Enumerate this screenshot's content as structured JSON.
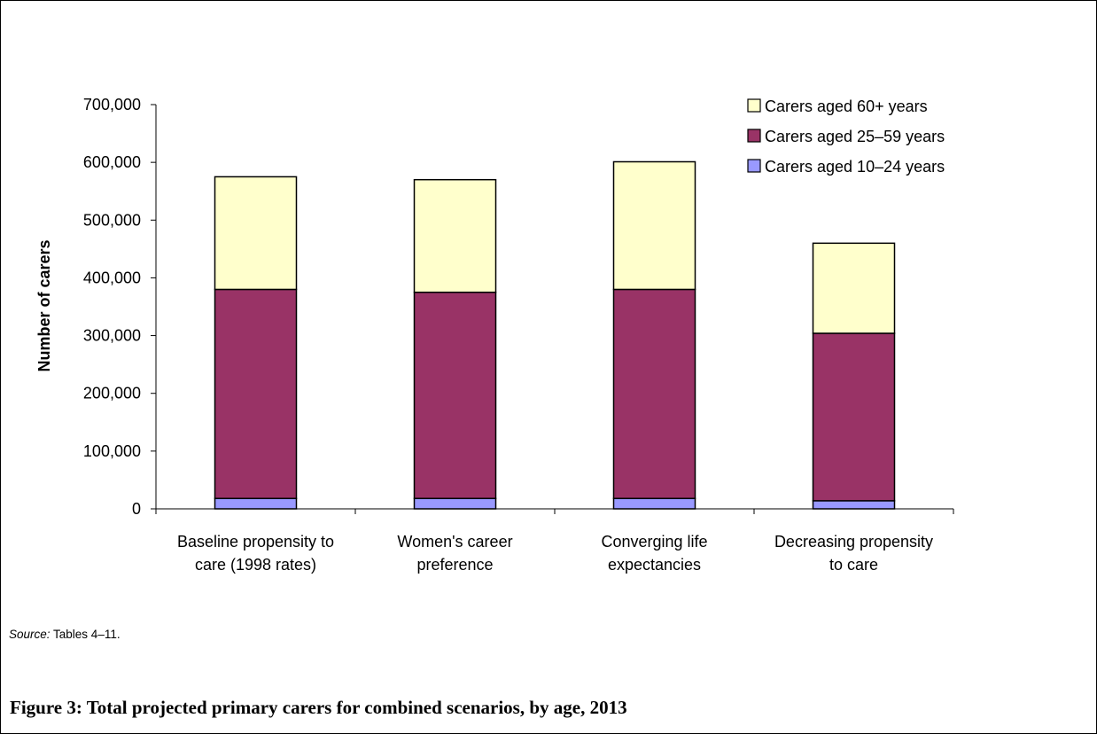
{
  "chart_data": {
    "type": "bar",
    "stacked": true,
    "title": "",
    "xlabel": "",
    "ylabel": "Number of carers",
    "ylim": [
      0,
      700000
    ],
    "yticks": [
      0,
      100000,
      200000,
      300000,
      400000,
      500000,
      600000,
      700000
    ],
    "ytick_labels": [
      "0",
      "100,000",
      "200,000",
      "300,000",
      "400,000",
      "500,000",
      "600,000",
      "700,000"
    ],
    "categories": [
      [
        "Baseline propensity to",
        "care (1998 rates)"
      ],
      [
        "Women's career",
        "preference"
      ],
      [
        "Converging life",
        "expectancies"
      ],
      [
        "Decreasing propensity",
        "to care"
      ]
    ],
    "series": [
      {
        "name": "Carers aged 10–24 years",
        "color": "#9999ff",
        "values": [
          18000,
          18000,
          18000,
          14000
        ]
      },
      {
        "name": "Carers aged 25–59 years",
        "color": "#993366",
        "values": [
          362000,
          357000,
          362000,
          290000
        ]
      },
      {
        "name": "Carers aged 60+ years",
        "color": "#ffffcc",
        "values": [
          195000,
          195000,
          221000,
          156000
        ]
      }
    ],
    "legend_order": [
      2,
      1,
      0
    ],
    "legend_position": "top-right",
    "grid": false
  },
  "source": {
    "key": "Source:",
    "text": " Tables 4–11."
  },
  "caption": "Figure 3: Total projected primary carers for combined scenarios, by age, 2013"
}
